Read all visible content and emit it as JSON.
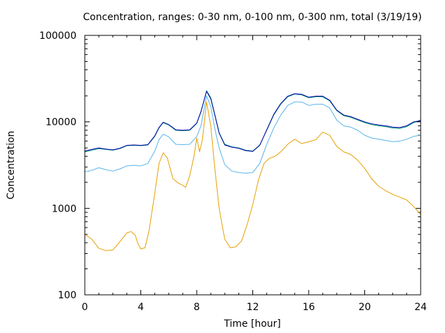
{
  "chart_data": {
    "type": "line",
    "title": "Concentration, ranges: 0-30 nm, 0-100 nm, 0-300 nm, total (3/19/19)",
    "xlabel": "Time [hour]",
    "ylabel": "Concentration",
    "xlim": [
      0,
      24
    ],
    "ylim": [
      100,
      100000
    ],
    "yscale": "log",
    "grid": false,
    "legend": "none",
    "xticks": [
      0,
      4,
      8,
      12,
      16,
      20,
      24
    ],
    "xtick_labels": [
      "0",
      "4",
      "8",
      "12",
      "16",
      "20",
      "24"
    ],
    "yticks": [
      100,
      1000,
      10000,
      100000
    ],
    "ytick_labels": [
      "100",
      "1000",
      "10000",
      "100000"
    ],
    "series": [
      {
        "color": "#e69f00",
        "points": [
          [
            0,
            500
          ],
          [
            0.5,
            440
          ],
          [
            1,
            345
          ],
          [
            1.5,
            325
          ],
          [
            2,
            330
          ],
          [
            2.5,
            410
          ],
          [
            3,
            520
          ],
          [
            3.3,
            540
          ],
          [
            3.6,
            490
          ],
          [
            3.8,
            390
          ],
          [
            4,
            340
          ],
          [
            4.3,
            350
          ],
          [
            4.6,
            560
          ],
          [
            5,
            1500
          ],
          [
            5.3,
            3300
          ],
          [
            5.6,
            4400
          ],
          [
            5.9,
            3800
          ],
          [
            6.3,
            2200
          ],
          [
            6.7,
            1950
          ],
          [
            7,
            1850
          ],
          [
            7.2,
            1750
          ],
          [
            7.5,
            2400
          ],
          [
            7.8,
            4000
          ],
          [
            8,
            6500
          ],
          [
            8.2,
            4500
          ],
          [
            8.4,
            6200
          ],
          [
            8.7,
            17000
          ],
          [
            9,
            9000
          ],
          [
            9.3,
            2800
          ],
          [
            9.6,
            1000
          ],
          [
            10,
            440
          ],
          [
            10.4,
            350
          ],
          [
            10.8,
            360
          ],
          [
            11.2,
            420
          ],
          [
            11.6,
            650
          ],
          [
            12,
            1100
          ],
          [
            12.4,
            2100
          ],
          [
            12.8,
            3300
          ],
          [
            13.2,
            3800
          ],
          [
            13.6,
            4000
          ],
          [
            14,
            4500
          ],
          [
            14.5,
            5500
          ],
          [
            15,
            6300
          ],
          [
            15.5,
            5600
          ],
          [
            16,
            5900
          ],
          [
            16.5,
            6200
          ],
          [
            17,
            7600
          ],
          [
            17.5,
            7000
          ],
          [
            18,
            5200
          ],
          [
            18.5,
            4500
          ],
          [
            19,
            4200
          ],
          [
            19.5,
            3600
          ],
          [
            20,
            2900
          ],
          [
            20.5,
            2200
          ],
          [
            21,
            1800
          ],
          [
            21.5,
            1600
          ],
          [
            22,
            1450
          ],
          [
            22.5,
            1350
          ],
          [
            23,
            1250
          ],
          [
            23.5,
            1050
          ],
          [
            24,
            850
          ]
        ]
      },
      {
        "color": "#56b4e9",
        "points": [
          [
            0,
            2650
          ],
          [
            0.5,
            2750
          ],
          [
            1,
            2950
          ],
          [
            1.5,
            2800
          ],
          [
            2,
            2700
          ],
          [
            2.5,
            2850
          ],
          [
            3,
            3100
          ],
          [
            3.5,
            3150
          ],
          [
            4,
            3100
          ],
          [
            4.5,
            3300
          ],
          [
            5,
            4600
          ],
          [
            5.3,
            6200
          ],
          [
            5.6,
            7200
          ],
          [
            6,
            6700
          ],
          [
            6.5,
            5500
          ],
          [
            7,
            5450
          ],
          [
            7.5,
            5500
          ],
          [
            8,
            6800
          ],
          [
            8.3,
            9000
          ],
          [
            8.7,
            20000
          ],
          [
            9,
            15000
          ],
          [
            9.3,
            8200
          ],
          [
            9.6,
            5000
          ],
          [
            10,
            3200
          ],
          [
            10.5,
            2700
          ],
          [
            11,
            2600
          ],
          [
            11.5,
            2550
          ],
          [
            12,
            2600
          ],
          [
            12.5,
            3300
          ],
          [
            13,
            5500
          ],
          [
            13.5,
            8500
          ],
          [
            14,
            12000
          ],
          [
            14.5,
            15500
          ],
          [
            15,
            17000
          ],
          [
            15.5,
            17000
          ],
          [
            16,
            15500
          ],
          [
            16.5,
            16000
          ],
          [
            17,
            16000
          ],
          [
            17.5,
            14500
          ],
          [
            18,
            10500
          ],
          [
            18.5,
            9000
          ],
          [
            19,
            8700
          ],
          [
            19.5,
            8000
          ],
          [
            20,
            7000
          ],
          [
            20.5,
            6500
          ],
          [
            21,
            6300
          ],
          [
            21.5,
            6100
          ],
          [
            22,
            5900
          ],
          [
            22.5,
            6000
          ],
          [
            23,
            6300
          ],
          [
            23.5,
            6800
          ],
          [
            24,
            7000
          ]
        ]
      },
      {
        "color": "#009e73",
        "points": [
          [
            0,
            4500
          ],
          [
            0.5,
            4700
          ],
          [
            1,
            4900
          ],
          [
            1.5,
            4800
          ],
          [
            2,
            4700
          ],
          [
            2.5,
            4900
          ],
          [
            3,
            5300
          ],
          [
            3.5,
            5350
          ],
          [
            4,
            5300
          ],
          [
            4.5,
            5400
          ],
          [
            5,
            6800
          ],
          [
            5.3,
            8500
          ],
          [
            5.6,
            9800
          ],
          [
            6,
            9200
          ],
          [
            6.5,
            8000
          ],
          [
            7,
            7900
          ],
          [
            7.5,
            8000
          ],
          [
            8,
            9600
          ],
          [
            8.3,
            13000
          ],
          [
            8.7,
            23000
          ],
          [
            9,
            19000
          ],
          [
            9.3,
            12000
          ],
          [
            9.6,
            7500
          ],
          [
            10,
            5500
          ],
          [
            10.5,
            5150
          ],
          [
            11,
            5000
          ],
          [
            11.5,
            4700
          ],
          [
            12,
            4600
          ],
          [
            12.5,
            5400
          ],
          [
            13,
            8000
          ],
          [
            13.5,
            12000
          ],
          [
            14,
            16000
          ],
          [
            14.5,
            19500
          ],
          [
            15,
            21000
          ],
          [
            15.5,
            20500
          ],
          [
            16,
            19000
          ],
          [
            16.5,
            19500
          ],
          [
            17,
            19500
          ],
          [
            17.5,
            17500
          ],
          [
            18,
            13500
          ],
          [
            18.5,
            11800
          ],
          [
            19,
            11300
          ],
          [
            19.5,
            10500
          ],
          [
            20,
            9800
          ],
          [
            20.5,
            9300
          ],
          [
            21,
            9000
          ],
          [
            21.5,
            8800
          ],
          [
            22,
            8500
          ],
          [
            22.5,
            8400
          ],
          [
            23,
            8800
          ],
          [
            23.5,
            9800
          ],
          [
            24,
            10500
          ]
        ]
      },
      {
        "color": "#0000aa",
        "points": [
          [
            0,
            4600
          ],
          [
            0.5,
            4800
          ],
          [
            1,
            5000
          ],
          [
            1.5,
            4850
          ],
          [
            2,
            4750
          ],
          [
            2.5,
            4950
          ],
          [
            3,
            5350
          ],
          [
            3.5,
            5400
          ],
          [
            4,
            5350
          ],
          [
            4.5,
            5450
          ],
          [
            5,
            6900
          ],
          [
            5.3,
            8600
          ],
          [
            5.6,
            9900
          ],
          [
            6,
            9300
          ],
          [
            6.5,
            8100
          ],
          [
            7,
            8000
          ],
          [
            7.5,
            8100
          ],
          [
            8,
            9700
          ],
          [
            8.3,
            13200
          ],
          [
            8.7,
            22500
          ],
          [
            9,
            18500
          ],
          [
            9.3,
            11800
          ],
          [
            9.6,
            7400
          ],
          [
            10,
            5400
          ],
          [
            10.5,
            5100
          ],
          [
            11,
            4950
          ],
          [
            11.5,
            4650
          ],
          [
            12,
            4550
          ],
          [
            12.5,
            5350
          ],
          [
            13,
            8100
          ],
          [
            13.5,
            12200
          ],
          [
            14,
            16300
          ],
          [
            14.5,
            19800
          ],
          [
            15,
            21200
          ],
          [
            15.5,
            20800
          ],
          [
            16,
            19300
          ],
          [
            16.5,
            19800
          ],
          [
            17,
            19800
          ],
          [
            17.5,
            17800
          ],
          [
            18,
            13700
          ],
          [
            18.5,
            12000
          ],
          [
            19,
            11500
          ],
          [
            19.5,
            10700
          ],
          [
            20,
            10000
          ],
          [
            20.5,
            9500
          ],
          [
            21,
            9200
          ],
          [
            21.5,
            9000
          ],
          [
            22,
            8700
          ],
          [
            22.5,
            8600
          ],
          [
            23,
            9000
          ],
          [
            23.5,
            10000
          ],
          [
            24,
            10300
          ]
        ]
      }
    ]
  }
}
